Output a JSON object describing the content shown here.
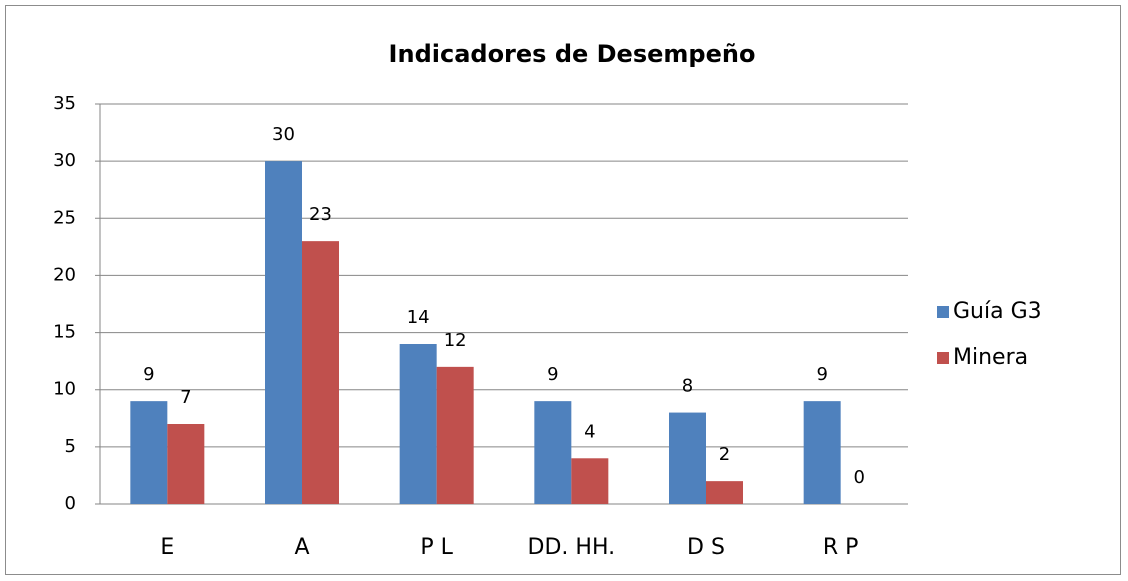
{
  "chart_data": {
    "type": "bar",
    "title": "Indicadores de Desempeño",
    "categories": [
      "E",
      "A",
      "P L",
      "DD. HH.",
      "D S",
      "R P"
    ],
    "series": [
      {
        "name": "Guía G3",
        "color": "#4f81bd",
        "values": [
          9,
          30,
          14,
          9,
          8,
          9
        ]
      },
      {
        "name": "Minera",
        "color": "#c0504d",
        "values": [
          7,
          23,
          12,
          4,
          2,
          0
        ]
      }
    ],
    "ylim": [
      0,
      35
    ],
    "yticks": [
      0,
      5,
      10,
      15,
      20,
      25,
      30,
      35
    ],
    "grid": true,
    "legend": "right"
  }
}
